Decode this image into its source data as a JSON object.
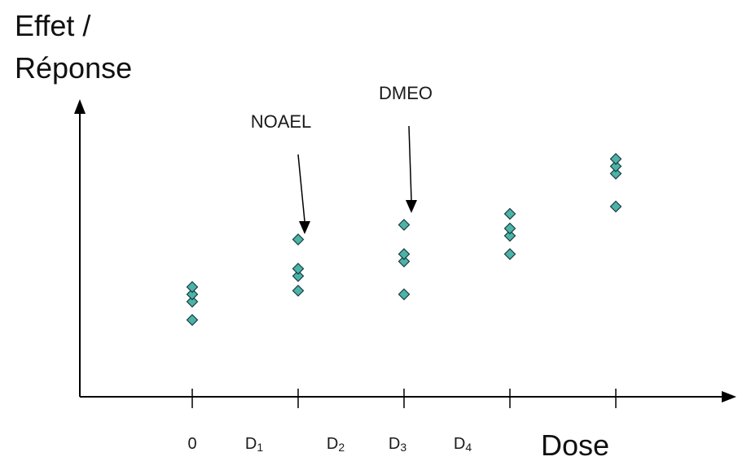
{
  "chart_data": {
    "type": "scatter",
    "title": "",
    "ylabel_lines": [
      "Effet /",
      "Réponse"
    ],
    "xlabel": "Dose",
    "tick_labels": [
      {
        "main": "0",
        "sub": ""
      },
      {
        "main": "D",
        "sub": "1"
      },
      {
        "main": "D",
        "sub": "2"
      },
      {
        "main": "D",
        "sub": "3"
      },
      {
        "main": "D",
        "sub": "4"
      }
    ],
    "series": [
      {
        "x": 1,
        "y": [
          2.1,
          2.6,
          2.8,
          3.0
        ]
      },
      {
        "x": 2,
        "y": [
          2.9,
          3.3,
          3.5,
          4.3
        ]
      },
      {
        "x": 3,
        "y": [
          2.8,
          3.7,
          3.9,
          4.7
        ]
      },
      {
        "x": 4,
        "y": [
          3.9,
          4.4,
          4.6,
          5.0
        ]
      },
      {
        "x": 5,
        "y": [
          5.2,
          6.1,
          6.3,
          6.5
        ]
      }
    ],
    "annotations": [
      {
        "label": "NOAEL",
        "x": 2
      },
      {
        "label": "DMEO",
        "x": 3
      }
    ],
    "marker_color": "#4bb3aa",
    "marker_stroke": "#1a3a3a",
    "grid": false
  }
}
